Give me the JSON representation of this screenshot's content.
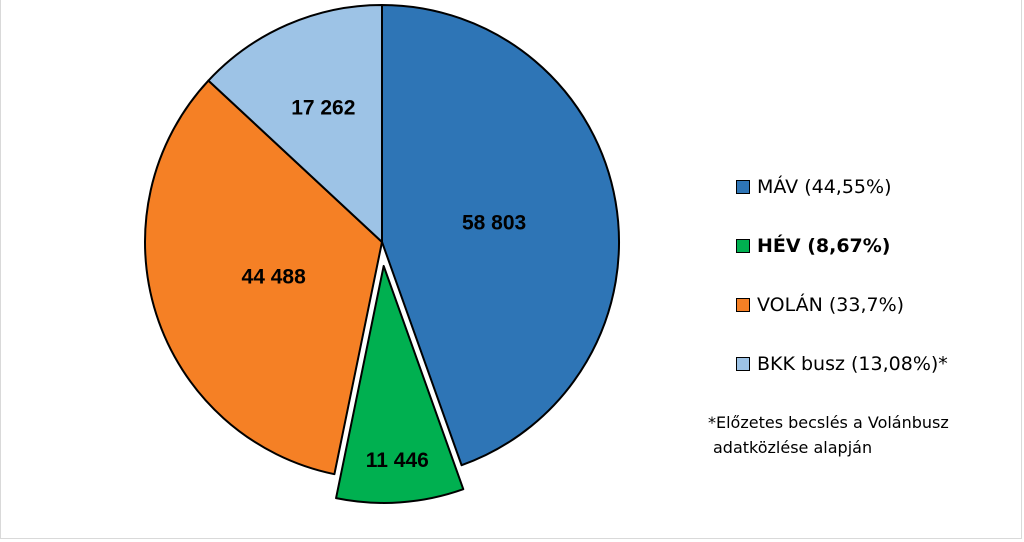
{
  "chart_data": {
    "type": "pie",
    "slices": [
      {
        "name": "MÁV",
        "value": 58803,
        "label": "58 803",
        "color": "#2e75b6",
        "exploded": false
      },
      {
        "name": "HÉV",
        "value": 11446,
        "label": "11 446",
        "color": "#00b050",
        "exploded": true
      },
      {
        "name": "VOLÁN",
        "value": 44488,
        "label": "44 488",
        "color": "#f58025",
        "exploded": false
      },
      {
        "name": "BKK busz",
        "value": 17262,
        "label": "17 262",
        "color": "#9dc3e6",
        "exploded": false
      }
    ],
    "start_angle_deg": 0,
    "direction": "clockwise",
    "legend_position": "right"
  },
  "legend": {
    "items": [
      {
        "text": "MÁV (44,55%)",
        "color": "#2e75b6",
        "bold": false
      },
      {
        "text": "HÉV (8,67%)",
        "color": "#00b050",
        "bold": true
      },
      {
        "text": "VOLÁN (33,7%)",
        "color": "#f58025",
        "bold": false
      },
      {
        "text": "BKK busz (13,08%)*",
        "color": "#9dc3e6",
        "bold": false
      }
    ]
  },
  "footnote": {
    "line1": "*Előzetes becslés a Volánbusz",
    "line2": "adatközlése alapján"
  }
}
